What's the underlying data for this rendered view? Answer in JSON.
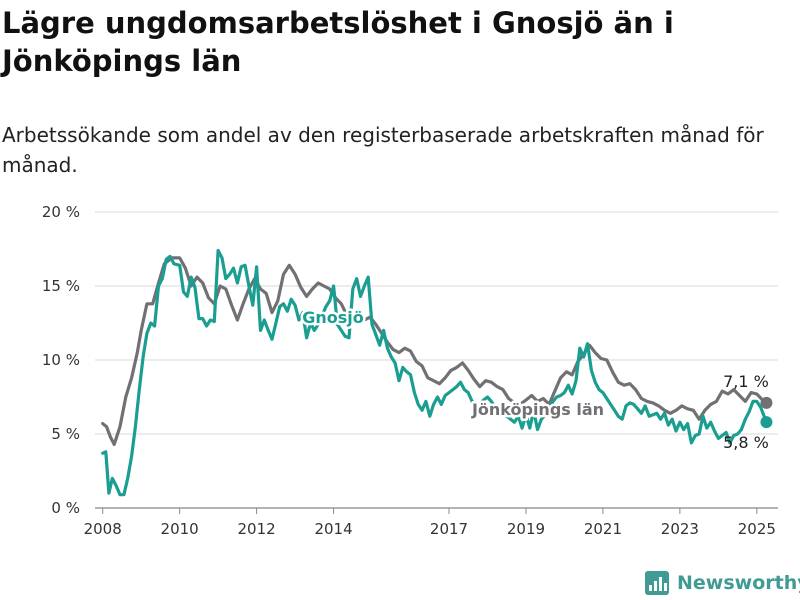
{
  "title": "Lägre ungdomsarbetslöshet i Gnosjö än i Jönköpings län",
  "subtitle": "Arbetssökande som andel av den registerbaserade arbetskraften månad för månad.",
  "brand": {
    "name": "Newsworthy",
    "icon": "bar-chart-logo-icon"
  },
  "colors": {
    "gnosjo": "#1a9e92",
    "lan": "#707075",
    "grid": "#d9d9d9",
    "brand": "#3f9b93"
  },
  "chart_data": {
    "type": "line",
    "y_unit": "%",
    "ylim": [
      0,
      20
    ],
    "y_ticks": [
      0,
      5,
      10,
      15,
      20
    ],
    "y_tick_labels": [
      "0 %",
      "5 %",
      "10 %",
      "15 %",
      "20 %"
    ],
    "x_range": [
      2007.8,
      2025.55
    ],
    "x_ticks": [
      2008,
      2010,
      2012,
      2014,
      2017,
      2019,
      2021,
      2023,
      2025
    ],
    "x_tick_labels": [
      "2008",
      "2010",
      "2012",
      "2014",
      "2017",
      "2019",
      "2021",
      "2023",
      "2025"
    ],
    "grid": true,
    "series": [
      {
        "name": "Jönköpings län",
        "color": "#707075",
        "end_label": "7,1 %",
        "points": [
          [
            2008.0,
            5.7
          ],
          [
            2008.1,
            5.5
          ],
          [
            2008.2,
            4.8
          ],
          [
            2008.3,
            4.3
          ],
          [
            2008.45,
            5.5
          ],
          [
            2008.6,
            7.5
          ],
          [
            2008.75,
            8.8
          ],
          [
            2008.9,
            10.5
          ],
          [
            2009.0,
            12.0
          ],
          [
            2009.15,
            13.8
          ],
          [
            2009.3,
            13.8
          ],
          [
            2009.45,
            15.2
          ],
          [
            2009.6,
            16.5
          ],
          [
            2009.8,
            16.9
          ],
          [
            2010.0,
            16.9
          ],
          [
            2010.15,
            16.2
          ],
          [
            2010.3,
            15.0
          ],
          [
            2010.45,
            15.6
          ],
          [
            2010.6,
            15.2
          ],
          [
            2010.75,
            14.2
          ],
          [
            2010.9,
            13.8
          ],
          [
            2011.05,
            15.0
          ],
          [
            2011.2,
            14.8
          ],
          [
            2011.35,
            13.7
          ],
          [
            2011.5,
            12.7
          ],
          [
            2011.65,
            13.8
          ],
          [
            2011.8,
            14.8
          ],
          [
            2011.95,
            15.5
          ],
          [
            2012.1,
            14.8
          ],
          [
            2012.25,
            14.5
          ],
          [
            2012.4,
            13.2
          ],
          [
            2012.55,
            14.0
          ],
          [
            2012.7,
            15.8
          ],
          [
            2012.85,
            16.4
          ],
          [
            2013.0,
            15.8
          ],
          [
            2013.15,
            14.9
          ],
          [
            2013.3,
            14.3
          ],
          [
            2013.45,
            14.8
          ],
          [
            2013.6,
            15.2
          ],
          [
            2013.75,
            15.0
          ],
          [
            2013.9,
            14.8
          ],
          [
            2014.05,
            14.2
          ],
          [
            2014.2,
            13.8
          ],
          [
            2014.35,
            13.0
          ],
          [
            2014.5,
            13.3
          ],
          [
            2014.65,
            13.0
          ],
          [
            2014.8,
            12.7
          ],
          [
            2014.95,
            12.9
          ],
          [
            2015.1,
            12.4
          ],
          [
            2015.25,
            11.8
          ],
          [
            2015.4,
            11.2
          ],
          [
            2015.55,
            10.7
          ],
          [
            2015.7,
            10.5
          ],
          [
            2015.85,
            10.8
          ],
          [
            2016.0,
            10.6
          ],
          [
            2016.15,
            9.9
          ],
          [
            2016.3,
            9.6
          ],
          [
            2016.45,
            8.8
          ],
          [
            2016.6,
            8.6
          ],
          [
            2016.75,
            8.4
          ],
          [
            2016.9,
            8.8
          ],
          [
            2017.05,
            9.3
          ],
          [
            2017.2,
            9.5
          ],
          [
            2017.35,
            9.8
          ],
          [
            2017.5,
            9.3
          ],
          [
            2017.65,
            8.7
          ],
          [
            2017.8,
            8.2
          ],
          [
            2017.95,
            8.6
          ],
          [
            2018.1,
            8.5
          ],
          [
            2018.25,
            8.2
          ],
          [
            2018.4,
            8.0
          ],
          [
            2018.55,
            7.4
          ],
          [
            2018.7,
            7.1
          ],
          [
            2018.85,
            7.0
          ],
          [
            2019.0,
            7.3
          ],
          [
            2019.15,
            7.6
          ],
          [
            2019.3,
            7.2
          ],
          [
            2019.45,
            7.4
          ],
          [
            2019.6,
            7.0
          ],
          [
            2019.75,
            7.9
          ],
          [
            2019.9,
            8.8
          ],
          [
            2020.05,
            9.2
          ],
          [
            2020.2,
            9.0
          ],
          [
            2020.35,
            9.9
          ],
          [
            2020.5,
            10.4
          ],
          [
            2020.65,
            11.0
          ],
          [
            2020.8,
            10.5
          ],
          [
            2020.95,
            10.1
          ],
          [
            2021.1,
            10.0
          ],
          [
            2021.25,
            9.2
          ],
          [
            2021.4,
            8.5
          ],
          [
            2021.55,
            8.3
          ],
          [
            2021.7,
            8.4
          ],
          [
            2021.85,
            8.0
          ],
          [
            2022.0,
            7.4
          ],
          [
            2022.15,
            7.2
          ],
          [
            2022.3,
            7.1
          ],
          [
            2022.45,
            6.9
          ],
          [
            2022.6,
            6.6
          ],
          [
            2022.75,
            6.4
          ],
          [
            2022.9,
            6.6
          ],
          [
            2023.05,
            6.9
          ],
          [
            2023.2,
            6.7
          ],
          [
            2023.35,
            6.6
          ],
          [
            2023.5,
            6.0
          ],
          [
            2023.65,
            6.6
          ],
          [
            2023.8,
            7.0
          ],
          [
            2023.95,
            7.2
          ],
          [
            2024.1,
            7.9
          ],
          [
            2024.25,
            7.7
          ],
          [
            2024.4,
            8.0
          ],
          [
            2024.55,
            7.6
          ],
          [
            2024.7,
            7.2
          ],
          [
            2024.85,
            7.8
          ],
          [
            2025.0,
            7.7
          ],
          [
            2025.15,
            7.3
          ],
          [
            2025.25,
            7.1
          ]
        ]
      },
      {
        "name": "Gnosjö",
        "color": "#1a9e92",
        "end_label": "5,8 %",
        "points": [
          [
            2008.0,
            3.7
          ],
          [
            2008.08,
            3.8
          ],
          [
            2008.16,
            1.0
          ],
          [
            2008.25,
            2.0
          ],
          [
            2008.35,
            1.5
          ],
          [
            2008.45,
            0.9
          ],
          [
            2008.55,
            0.9
          ],
          [
            2008.65,
            2.0
          ],
          [
            2008.75,
            3.5
          ],
          [
            2008.85,
            5.5
          ],
          [
            2008.95,
            8.0
          ],
          [
            2009.05,
            10.2
          ],
          [
            2009.15,
            11.8
          ],
          [
            2009.25,
            12.5
          ],
          [
            2009.35,
            12.3
          ],
          [
            2009.45,
            15.0
          ],
          [
            2009.55,
            15.5
          ],
          [
            2009.65,
            16.8
          ],
          [
            2009.75,
            17.0
          ],
          [
            2009.85,
            16.5
          ],
          [
            2010.0,
            16.4
          ],
          [
            2010.1,
            14.6
          ],
          [
            2010.2,
            14.3
          ],
          [
            2010.3,
            15.6
          ],
          [
            2010.4,
            14.9
          ],
          [
            2010.5,
            12.8
          ],
          [
            2010.6,
            12.8
          ],
          [
            2010.7,
            12.3
          ],
          [
            2010.8,
            12.7
          ],
          [
            2010.9,
            12.6
          ],
          [
            2011.0,
            17.4
          ],
          [
            2011.1,
            16.9
          ],
          [
            2011.2,
            15.5
          ],
          [
            2011.3,
            15.8
          ],
          [
            2011.4,
            16.2
          ],
          [
            2011.5,
            15.2
          ],
          [
            2011.6,
            16.3
          ],
          [
            2011.7,
            16.4
          ],
          [
            2011.8,
            15.0
          ],
          [
            2011.9,
            13.7
          ],
          [
            2012.0,
            16.3
          ],
          [
            2012.1,
            12.0
          ],
          [
            2012.2,
            12.7
          ],
          [
            2012.3,
            12.0
          ],
          [
            2012.4,
            11.4
          ],
          [
            2012.5,
            12.5
          ],
          [
            2012.6,
            13.6
          ],
          [
            2012.7,
            13.8
          ],
          [
            2012.8,
            13.3
          ],
          [
            2012.9,
            14.1
          ],
          [
            2013.0,
            13.7
          ],
          [
            2013.1,
            12.7
          ],
          [
            2013.2,
            13.2
          ],
          [
            2013.3,
            11.5
          ],
          [
            2013.4,
            12.5
          ],
          [
            2013.5,
            12.0
          ],
          [
            2013.6,
            12.4
          ],
          [
            2013.7,
            13.0
          ],
          [
            2013.8,
            13.6
          ],
          [
            2013.9,
            14.0
          ],
          [
            2014.0,
            15.0
          ],
          [
            2014.1,
            12.4
          ],
          [
            2014.2,
            12.0
          ],
          [
            2014.3,
            11.6
          ],
          [
            2014.4,
            11.5
          ],
          [
            2014.5,
            14.8
          ],
          [
            2014.6,
            15.5
          ],
          [
            2014.7,
            14.3
          ],
          [
            2014.8,
            15.0
          ],
          [
            2014.9,
            15.6
          ],
          [
            2015.0,
            12.4
          ],
          [
            2015.1,
            11.7
          ],
          [
            2015.2,
            11.0
          ],
          [
            2015.3,
            12.0
          ],
          [
            2015.4,
            10.8
          ],
          [
            2015.5,
            10.2
          ],
          [
            2015.6,
            9.8
          ],
          [
            2015.7,
            8.6
          ],
          [
            2015.8,
            9.5
          ],
          [
            2015.9,
            9.2
          ],
          [
            2016.0,
            9.0
          ],
          [
            2016.1,
            7.8
          ],
          [
            2016.2,
            7.0
          ],
          [
            2016.3,
            6.6
          ],
          [
            2016.4,
            7.2
          ],
          [
            2016.5,
            6.2
          ],
          [
            2016.6,
            7.0
          ],
          [
            2016.7,
            7.5
          ],
          [
            2016.8,
            7.0
          ],
          [
            2016.9,
            7.6
          ],
          [
            2017.0,
            7.8
          ],
          [
            2017.1,
            8.0
          ],
          [
            2017.2,
            8.2
          ],
          [
            2017.3,
            8.5
          ],
          [
            2017.4,
            8.0
          ],
          [
            2017.5,
            7.8
          ],
          [
            2017.6,
            7.2
          ],
          [
            2017.7,
            7.0
          ],
          [
            2017.8,
            7.0
          ],
          [
            2017.9,
            7.3
          ],
          [
            2018.0,
            7.5
          ],
          [
            2018.1,
            7.2
          ],
          [
            2018.2,
            6.8
          ],
          [
            2018.3,
            6.5
          ],
          [
            2018.4,
            6.3
          ],
          [
            2018.5,
            6.2
          ],
          [
            2018.6,
            6.0
          ],
          [
            2018.7,
            5.8
          ],
          [
            2018.8,
            6.2
          ],
          [
            2018.9,
            5.4
          ],
          [
            2019.0,
            6.3
          ],
          [
            2019.1,
            5.4
          ],
          [
            2019.2,
            6.6
          ],
          [
            2019.3,
            5.3
          ],
          [
            2019.4,
            6.0
          ],
          [
            2019.5,
            6.3
          ],
          [
            2019.6,
            6.4
          ],
          [
            2019.7,
            7.2
          ],
          [
            2019.8,
            7.5
          ],
          [
            2019.9,
            7.6
          ],
          [
            2020.0,
            7.8
          ],
          [
            2020.1,
            8.3
          ],
          [
            2020.2,
            7.7
          ],
          [
            2020.3,
            8.6
          ],
          [
            2020.4,
            10.8
          ],
          [
            2020.5,
            10.2
          ],
          [
            2020.6,
            11.1
          ],
          [
            2020.7,
            9.3
          ],
          [
            2020.8,
            8.5
          ],
          [
            2020.9,
            8.0
          ],
          [
            2021.0,
            7.8
          ],
          [
            2021.1,
            7.4
          ],
          [
            2021.2,
            7.0
          ],
          [
            2021.3,
            6.6
          ],
          [
            2021.4,
            6.2
          ],
          [
            2021.5,
            6.0
          ],
          [
            2021.6,
            6.9
          ],
          [
            2021.7,
            7.1
          ],
          [
            2021.8,
            7.0
          ],
          [
            2021.9,
            6.7
          ],
          [
            2022.0,
            6.4
          ],
          [
            2022.1,
            6.9
          ],
          [
            2022.2,
            6.2
          ],
          [
            2022.3,
            6.3
          ],
          [
            2022.4,
            6.4
          ],
          [
            2022.5,
            6.0
          ],
          [
            2022.6,
            6.4
          ],
          [
            2022.7,
            5.6
          ],
          [
            2022.8,
            6.0
          ],
          [
            2022.9,
            5.2
          ],
          [
            2023.0,
            5.8
          ],
          [
            2023.1,
            5.3
          ],
          [
            2023.2,
            5.7
          ],
          [
            2023.3,
            4.4
          ],
          [
            2023.4,
            4.9
          ],
          [
            2023.5,
            5.0
          ],
          [
            2023.6,
            6.2
          ],
          [
            2023.7,
            5.4
          ],
          [
            2023.8,
            5.8
          ],
          [
            2023.9,
            5.2
          ],
          [
            2024.0,
            4.7
          ],
          [
            2024.1,
            4.9
          ],
          [
            2024.2,
            5.1
          ],
          [
            2024.3,
            4.4
          ],
          [
            2024.4,
            4.9
          ],
          [
            2024.5,
            5.0
          ],
          [
            2024.6,
            5.3
          ],
          [
            2024.7,
            6.0
          ],
          [
            2024.8,
            6.5
          ],
          [
            2024.9,
            7.2
          ],
          [
            2025.0,
            7.2
          ],
          [
            2025.1,
            6.8
          ],
          [
            2025.25,
            5.8
          ]
        ]
      }
    ]
  }
}
